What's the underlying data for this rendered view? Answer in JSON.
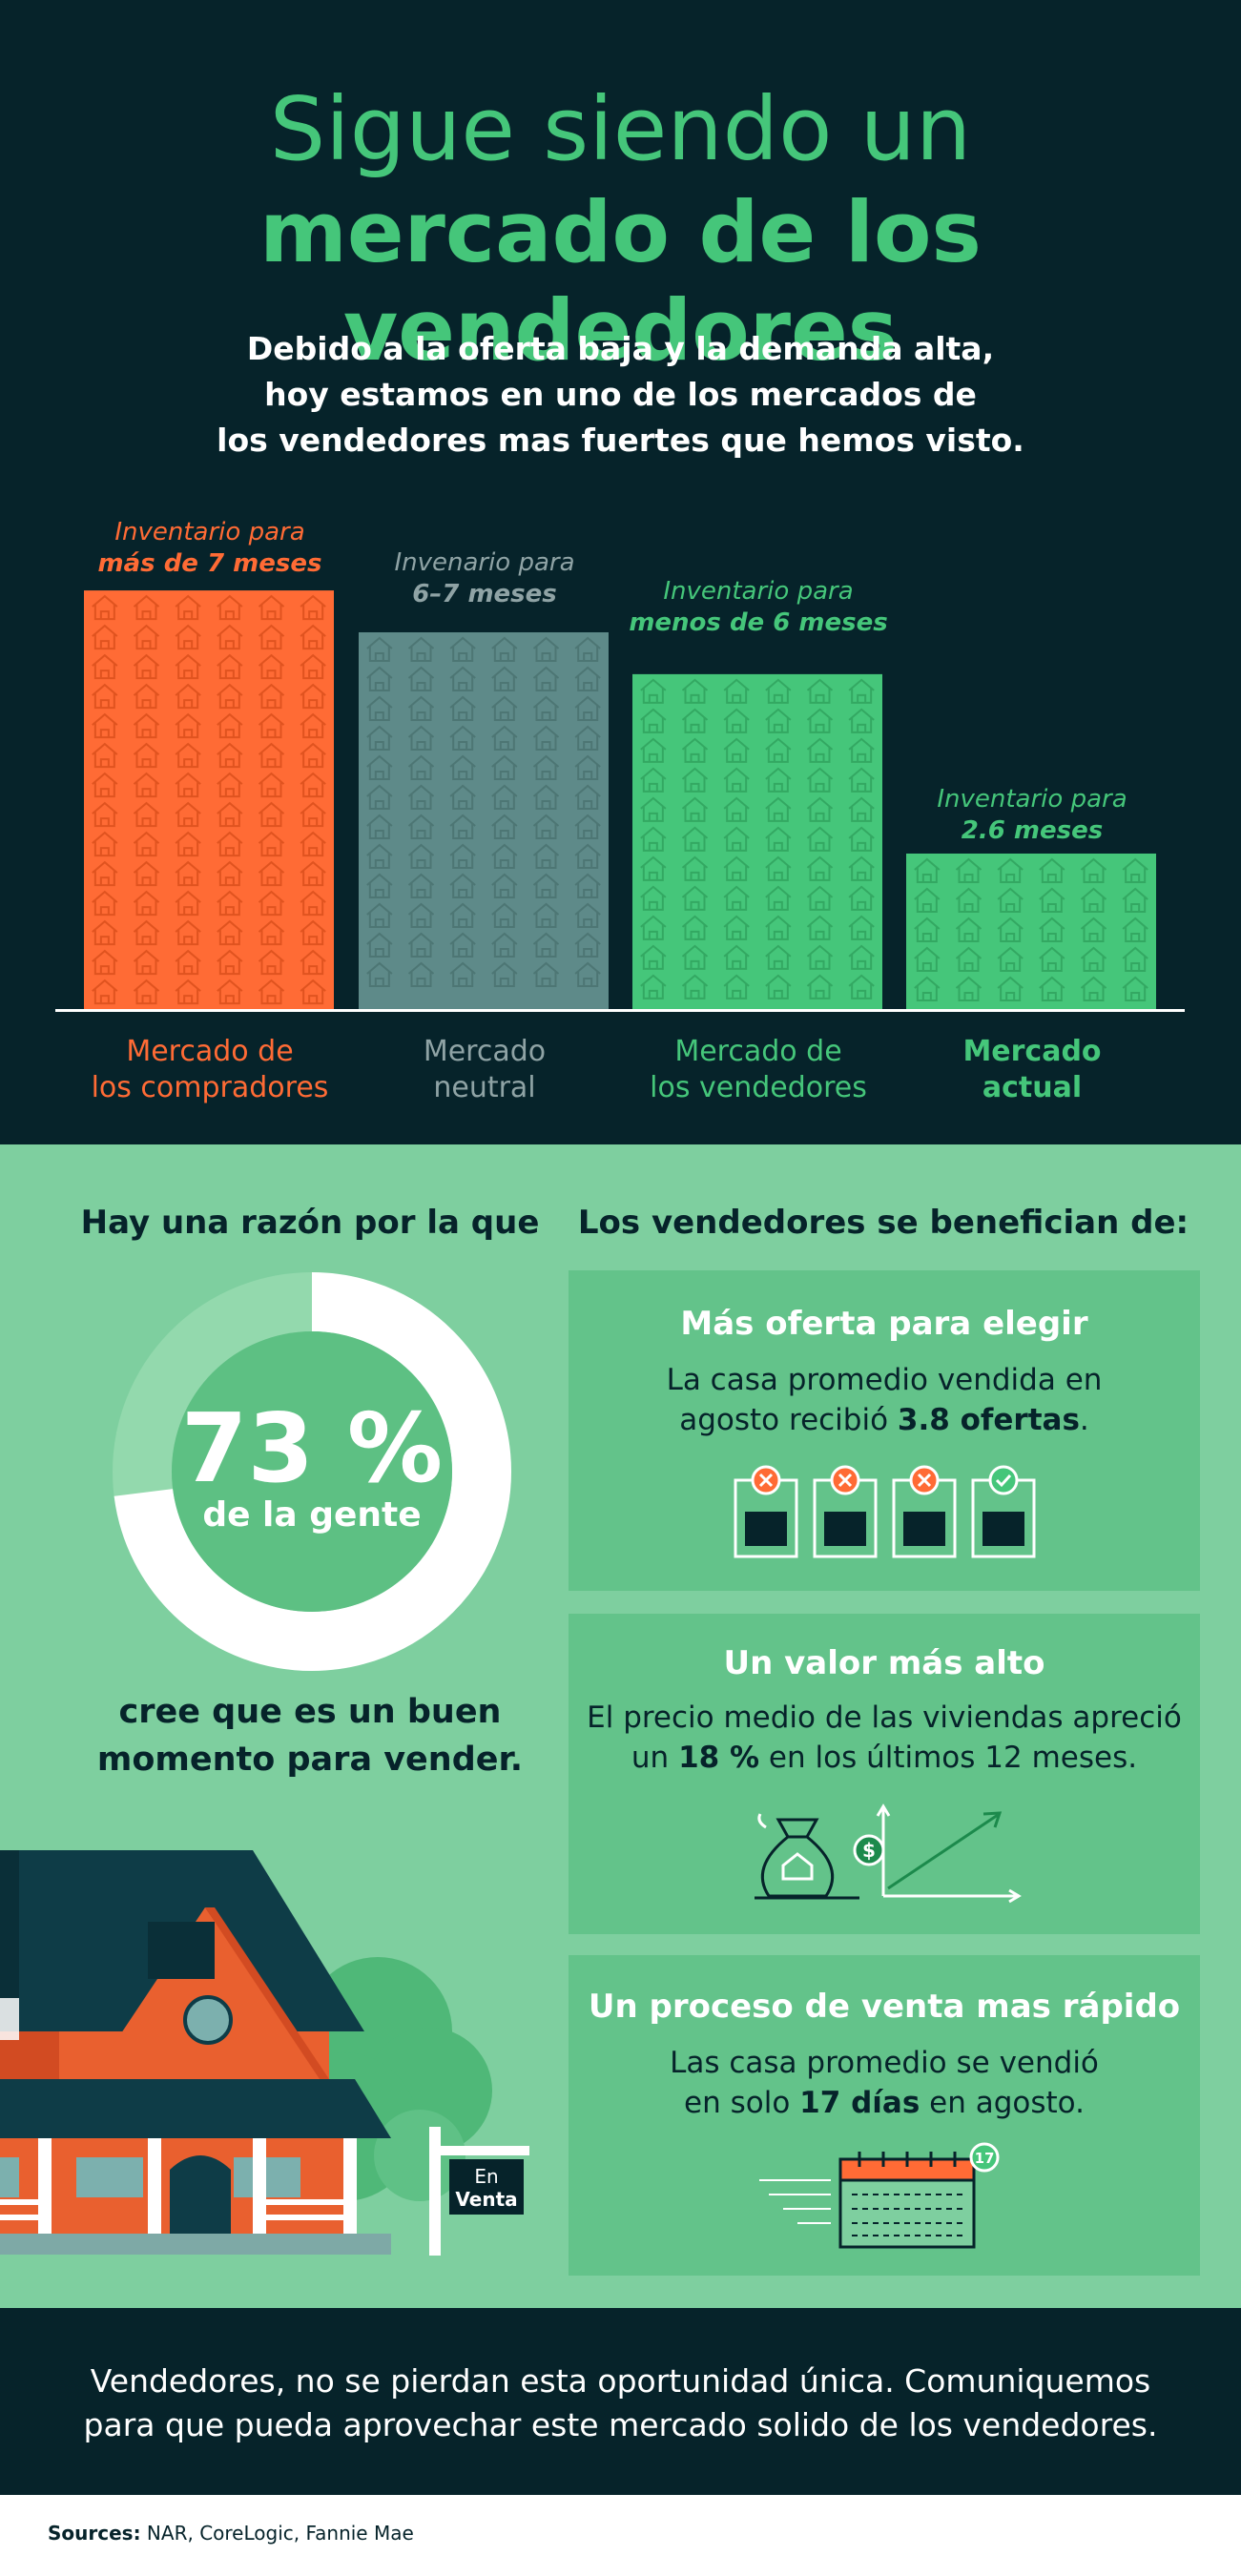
{
  "header": {
    "title_line1": "Sigue siendo un",
    "title_line2": "mercado de los vendedores",
    "subtitle_line1": "Debido a la oferta baja y la demanda alta,",
    "subtitle_line2": "hoy estamos en uno de los mercados de",
    "subtitle_line3": "los vendedores mas fuertes que hemos visto."
  },
  "chart_data": {
    "type": "bar",
    "categories": [
      "Mercado de los compradores",
      "Mercado neutral",
      "Mercado de los vendedores",
      "Mercado actual"
    ],
    "values": [
      7,
      6.3,
      5.6,
      2.6
    ],
    "bars": [
      {
        "label_line1": "Inventario  para",
        "label_line2": "más de 7 meses",
        "cat_line1": "Mercado de",
        "cat_line2": "los compradores",
        "color": "#ff6b35",
        "icon_color": "#e0531f",
        "text_color": "#ff6b35",
        "months": 7
      },
      {
        "label_line1": "Invenario  para",
        "label_line2": "6–7 meses",
        "cat_line1": "Mercado",
        "cat_line2": "neutral",
        "color": "#5e8a89",
        "icon_color": "#4d7674",
        "text_color": "#8fa3a5",
        "months": 6.3
      },
      {
        "label_line1": "Inventario  para",
        "label_line2": "menos de 6 meses",
        "cat_line1": "Mercado de",
        "cat_line2": "los vendedores",
        "color": "#45c67a",
        "icon_color": "#33a862",
        "text_color": "#45c67a",
        "months": 5.6
      },
      {
        "label_line1": "Inventario  para",
        "label_line2": "2.6 meses",
        "cat_line1": "Mercado",
        "cat_line2": "actual",
        "color": "#45c67a",
        "icon_color": "#33a862",
        "text_color": "#45c67a",
        "months": 2.6
      }
    ]
  },
  "left": {
    "heading": "Hay una razón por la que",
    "percent": "73 %",
    "percent_value": 73,
    "percent_sub": "de la gente",
    "line1": "cree que es un buen",
    "line2": "momento para vender."
  },
  "house_sign": {
    "line1": "En",
    "line2": "Venta"
  },
  "right": {
    "heading": "Los vendedores se benefician de:",
    "cards": [
      {
        "title": "Más oferta para elegir",
        "text_line1": "La casa promedio vendida en",
        "text_line2_pre": "agosto recibió ",
        "text_line2_bold": "3.8 ofertas",
        "text_line2_post": "."
      },
      {
        "title": "Un valor más alto",
        "text_line1": "El precio medio de las viviendas apreció",
        "text_line2_pre": "un ",
        "text_line2_bold": "18 %",
        "text_line2_post": " en los últimos 12 meses."
      },
      {
        "title": "Un proceso de venta mas rápido",
        "text_line1": "Las casa promedio se vendió",
        "text_line2_pre": "en solo ",
        "text_line2_bold": "17 días",
        "text_line2_post": " en agosto."
      }
    ],
    "calendar_badge": "17"
  },
  "footer": {
    "cta_line1": "Vendedores, no se pierdan esta oportunidad única. Comuniquemos",
    "cta_line2": "para que pueda aprovechar este mercado solido de los vendedores.",
    "sources_label": "Sources:",
    "sources_text": " NAR, CoreLogic, Fannie Mae"
  },
  "colors": {
    "dark": "#06232a",
    "green": "#45c67a",
    "light_green": "#7ecf9f",
    "card_green": "#63c38a",
    "orange": "#ff6b35",
    "gray_teal": "#5e8a89"
  }
}
